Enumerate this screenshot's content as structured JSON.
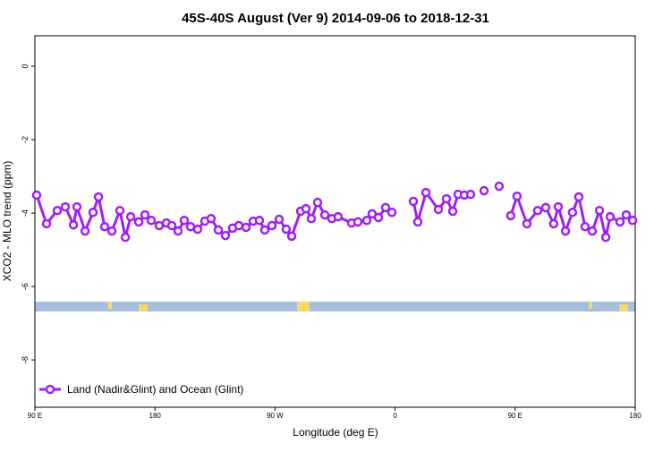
{
  "chart_data": {
    "type": "line",
    "title": "45S-40S August (Ver 9)   2014-09-06 to 2018-12-31",
    "x_label": "Longitude (deg E)",
    "y_label": "XCO2 - MLO trend (ppm)",
    "xlim": [
      90,
      540
    ],
    "xticks": [
      {
        "value": 90,
        "label": "90 E"
      },
      {
        "value": 180,
        "label": "180"
      },
      {
        "value": 270,
        "label": "90 W"
      },
      {
        "value": 360,
        "label": "0"
      },
      {
        "value": 450,
        "label": "90 E"
      },
      {
        "value": 540,
        "label": "180"
      }
    ],
    "ylim": [
      -9.29,
      0.83
    ],
    "yticks": [
      0,
      -2,
      -4,
      -6,
      -8
    ],
    "legend": "lower left",
    "series": [
      {
        "name": "Land (Nadir&Glint) and Ocean (Glint)",
        "color": "#a020f0",
        "x": [
          91.3,
          98.7,
          106.8,
          112.8,
          118.9,
          121.5,
          127.6,
          133.6,
          137.7,
          142.3,
          147.7,
          153.7,
          157.8,
          161.8,
          167.8,
          172.5,
          177.2,
          183.2,
          188.6,
          192.6,
          197.3,
          202.0,
          206.7,
          212.0,
          217.4,
          222.1,
          227.5,
          232.8,
          238.2,
          242.9,
          248.3,
          253.6,
          258.3,
          262.3,
          267.7,
          273.1,
          278.4,
          282.5,
          289.2,
          293.2,
          297.2,
          301.9,
          307.3,
          312.6,
          317.3,
          327.4,
          332.1,
          338.8,
          342.8,
          347.5,
          352.9,
          357.6,
          365.0,
          373.7,
          377.0,
          383.1,
          392.5,
          398.5,
          403.2,
          407.2,
          411.9,
          416.6,
          421.0,
          426.7,
          432.0,
          438.0,
          442.0,
          446.7,
          451.4,
          458.8,
          466.9,
          472.9,
          478.9,
          482.3,
          487.7,
          493.0,
          497.7,
          502.4,
          507.8,
          513.2,
          517.9,
          521.2,
          528.6,
          533.3,
          538.0
        ],
        "values": [
          -3.51,
          -4.29,
          -3.93,
          -3.83,
          -4.32,
          -3.83,
          -4.49,
          -3.98,
          -3.56,
          -4.37,
          -4.49,
          -3.93,
          -4.66,
          -4.1,
          -4.24,
          -4.05,
          -4.2,
          -4.34,
          -4.27,
          -4.34,
          -4.49,
          -4.2,
          -4.37,
          -4.44,
          -4.22,
          -4.15,
          -4.46,
          -4.61,
          -4.41,
          -4.34,
          -4.39,
          -4.22,
          -4.2,
          -4.46,
          -4.34,
          -4.17,
          -4.44,
          -4.63,
          -3.95,
          -3.88,
          -4.15,
          -3.71,
          -4.05,
          -4.15,
          -4.1,
          -4.27,
          -4.24,
          -4.2,
          -4.02,
          -4.12,
          -3.85,
          -3.98,
          null,
          -3.68,
          -4.24,
          -3.44,
          -3.9,
          -3.61,
          -3.95,
          -3.49,
          -3.51,
          -3.49,
          null,
          -3.39,
          null,
          -3.27,
          null,
          -4.07,
          -3.54,
          -4.29,
          -3.93,
          -3.85,
          -4.29,
          -3.83,
          -4.49,
          -3.98,
          -3.56,
          -4.37,
          -4.49,
          -3.93,
          -4.66,
          -4.1,
          -4.24,
          -4.05,
          -4.2
        ]
      }
    ]
  }
}
